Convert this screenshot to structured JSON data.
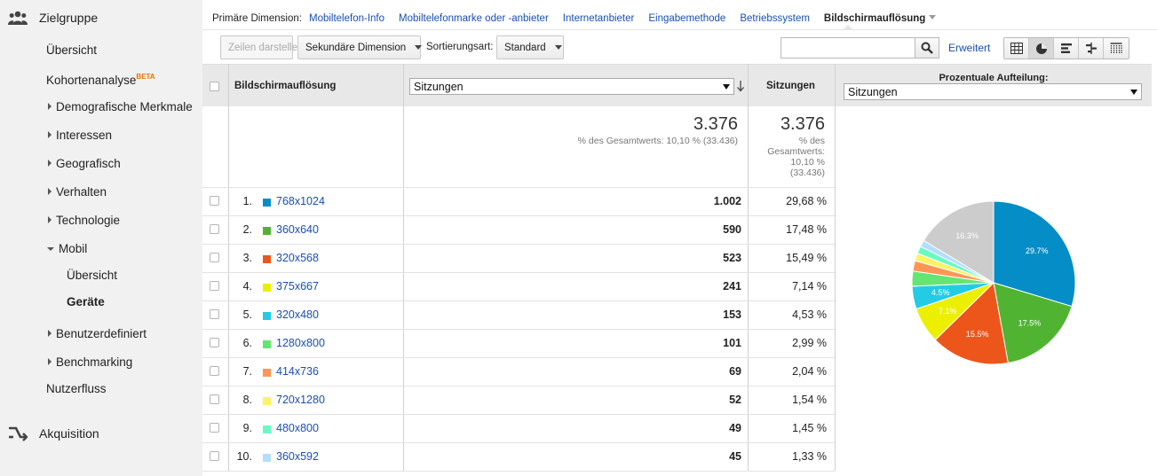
{
  "sidebar": {
    "section_zielgruppe": "Zielgruppe",
    "items": {
      "uebersicht": "Übersicht",
      "kohortenanalyse": "Kohortenanalyse",
      "beta": "BETA",
      "demografische": "Demografische Merkmale",
      "interessen": "Interessen",
      "geografisch": "Geografisch",
      "verhalten": "Verhalten",
      "technologie": "Technologie",
      "mobil": "Mobil",
      "mobil_uebersicht": "Übersicht",
      "mobil_geraete": "Geräte",
      "benutzerdefiniert": "Benutzerdefiniert",
      "benchmarking": "Benchmarking",
      "nutzerfluss": "Nutzerfluss"
    },
    "section_akquisition": "Akquisition"
  },
  "dimbar": {
    "label": "Primäre Dimension:",
    "links": [
      "Mobiltelefon-Info",
      "Mobiltelefonmarke oder -anbieter",
      "Internetanbieter",
      "Eingabemethode",
      "Betriebssystem"
    ],
    "active": "Bildschirmauflösung"
  },
  "toolbar": {
    "zeilen_darstellen": "Zeilen darstellen",
    "sekundaere_dimension": "Sekundäre Dimension",
    "sortierungsart_label": "Sortierungsart:",
    "sortierungsart_value": "Standard",
    "search_value": "",
    "erweitert": "Erweitert"
  },
  "icons": {
    "search": "search-icon",
    "views": [
      "table-view-icon",
      "pie-view-icon",
      "performance-view-icon",
      "comparison-view-icon",
      "pivot-view-icon"
    ]
  },
  "table": {
    "col_dimension": "Bildschirmauflösung",
    "metric_select": "Sitzungen",
    "col_sitzungen": "Sitzungen",
    "totals": {
      "value1": "3.376",
      "sub1": "% des Gesamtwerts: 10,10 % (33.436)",
      "value2": "3.376",
      "sub2_lines": [
        "% des",
        "Gesamtwerts:",
        "10,10 %",
        "(33.436)"
      ]
    },
    "rows": [
      {
        "idx": "1.",
        "label": "768x1024",
        "value": "1.002",
        "pct": "29,68 %",
        "color": "#058dc7"
      },
      {
        "idx": "2.",
        "label": "360x640",
        "value": "590",
        "pct": "17,48 %",
        "color": "#50b432"
      },
      {
        "idx": "3.",
        "label": "320x568",
        "value": "523",
        "pct": "15,49 %",
        "color": "#ed561b"
      },
      {
        "idx": "4.",
        "label": "375x667",
        "value": "241",
        "pct": "7,14 %",
        "color": "#edef00"
      },
      {
        "idx": "5.",
        "label": "320x480",
        "value": "153",
        "pct": "4,53 %",
        "color": "#24cbe5"
      },
      {
        "idx": "6.",
        "label": "1280x800",
        "value": "101",
        "pct": "2,99 %",
        "color": "#64e572"
      },
      {
        "idx": "7.",
        "label": "414x736",
        "value": "69",
        "pct": "2,04 %",
        "color": "#ff9655"
      },
      {
        "idx": "8.",
        "label": "720x1280",
        "value": "52",
        "pct": "1,54 %",
        "color": "#fff263"
      },
      {
        "idx": "9.",
        "label": "480x800",
        "value": "49",
        "pct": "1,45 %",
        "color": "#6af9c4"
      },
      {
        "idx": "10.",
        "label": "360x592",
        "value": "45",
        "pct": "1,33 %",
        "color": "#b2deff"
      }
    ]
  },
  "pie_panel": {
    "title": "Prozentuale Aufteilung:",
    "metric_select": "Sitzungen",
    "other_color": "#cccccc"
  },
  "chart_data": {
    "type": "pie",
    "categories": [
      "768x1024",
      "360x640",
      "320x568",
      "375x667",
      "320x480",
      "1280x800",
      "414x736",
      "720x1280",
      "480x800",
      "360x592",
      ""
    ],
    "values": [
      29.68,
      17.48,
      15.49,
      7.14,
      4.53,
      2.99,
      2.04,
      1.54,
      1.45,
      1.33,
      16.33
    ],
    "slice_labels": [
      "29.7%",
      "17.5%",
      "15.5%",
      "7.1%",
      "4.5%",
      "",
      "",
      "",
      "",
      "",
      "16.3%"
    ],
    "colors": [
      "#058dc7",
      "#50b432",
      "#ed561b",
      "#edef00",
      "#24cbe5",
      "#64e572",
      "#ff9655",
      "#fff263",
      "#6af9c4",
      "#b2deff",
      "#cccccc"
    ]
  }
}
